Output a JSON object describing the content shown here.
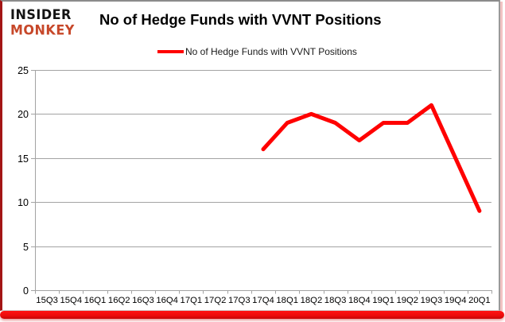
{
  "logo": {
    "top": "INSIDER",
    "bottom": "MONKEY"
  },
  "header": {
    "title": "No of Hedge Funds with VVNT Positions"
  },
  "legend": {
    "label": "No of Hedge Funds with VVNT Positions"
  },
  "colors": {
    "series": "#ff0000",
    "logo_red": "#c7482a",
    "grid": "#a3a3a3",
    "axis": "#a3a3a3",
    "tick_text": "#000000",
    "border_red": "#a31515",
    "border_gray": "#8b8b8b",
    "pink_shadow": "#f2c3c3",
    "bottom_bar": "#ee0d0d"
  },
  "chart_data": {
    "type": "line",
    "title": "No of Hedge Funds with VVNT Positions",
    "categories": [
      "15Q3",
      "15Q4",
      "16Q1",
      "16Q2",
      "16Q3",
      "16Q4",
      "17Q1",
      "17Q2",
      "17Q3",
      "17Q4",
      "18Q1",
      "18Q2",
      "18Q3",
      "18Q4",
      "19Q1",
      "19Q2",
      "19Q3",
      "19Q4",
      "20Q1"
    ],
    "series": [
      {
        "name": "No of Hedge Funds with VVNT Positions",
        "color": "#ff0000",
        "values": [
          null,
          null,
          null,
          null,
          null,
          null,
          null,
          null,
          null,
          16,
          19,
          20,
          19,
          17,
          19,
          19,
          21,
          15,
          9
        ]
      }
    ],
    "xlabel": "",
    "ylabel": "",
    "ylim": [
      0,
      25
    ],
    "yticks": [
      0,
      5,
      10,
      15,
      20,
      25
    ],
    "grid": true,
    "legend_position": "top-center"
  }
}
